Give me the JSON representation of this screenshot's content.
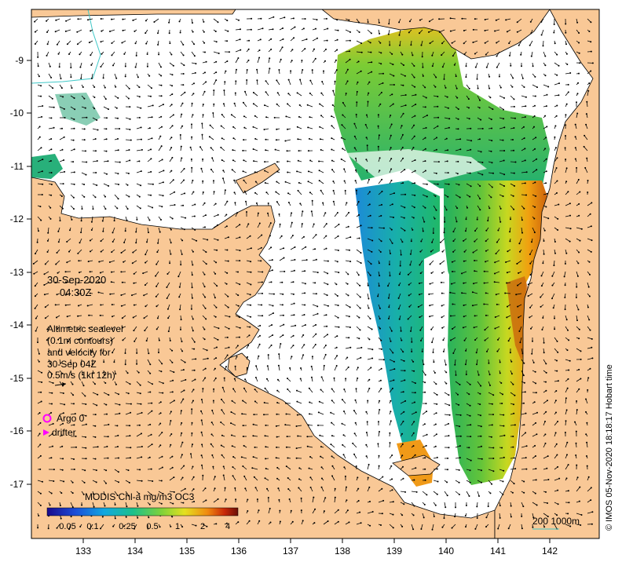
{
  "map": {
    "date": "30-Sep-2020",
    "time": "04:30Z",
    "x_ticks": [
      "133",
      "134",
      "135",
      "136",
      "137",
      "138",
      "139",
      "140",
      "141",
      "142"
    ],
    "y_ticks": [
      "-9",
      "-10",
      "-11",
      "-12",
      "-13",
      "-14",
      "-15",
      "-16",
      "-17"
    ],
    "sealevel_note": {
      "line1": "Altimetric sealevel",
      "line2": "(0.1m contours)",
      "line3": "and velocity for",
      "line4": "30-Sep 04Z",
      "line5": "0.5m/s (1kt 12h)"
    },
    "legend": {
      "argo": "Argo 0",
      "drifter": "drifter"
    },
    "colorbar": {
      "title": "MODIS Chl-a mg/m3 OC3",
      "labels": [
        "0.05",
        "0.1",
        "0.25",
        "0.5",
        "1",
        "2",
        "4"
      ]
    },
    "scale_bar": "200  1000m",
    "credit": "© IMOS 05-Nov-2020 18:18:17 Hobart time",
    "colors": {
      "land": "#f9c896",
      "sea": "#ffffff",
      "argo": "#ff00ff",
      "contour": "#40c8c8"
    }
  }
}
